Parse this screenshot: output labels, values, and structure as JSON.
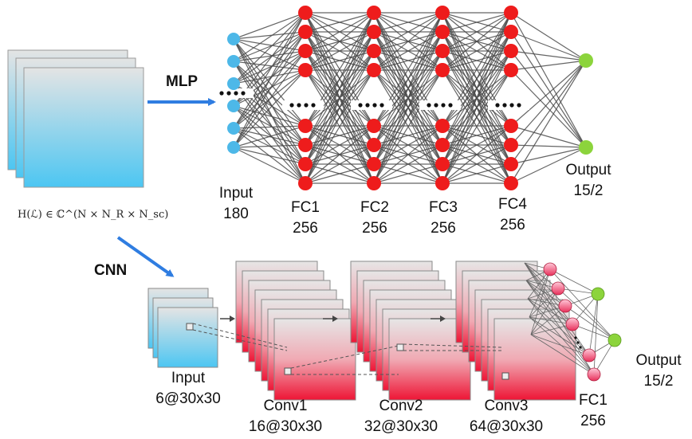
{
  "formula": "H(ℒ) ∈ ℂ^(N × N_R × N_sc)",
  "mlp": {
    "branch_label": "MLP",
    "layers": [
      {
        "name": "Input",
        "size": "180"
      },
      {
        "name": "FC1",
        "size": "256"
      },
      {
        "name": "FC2",
        "size": "256"
      },
      {
        "name": "FC3",
        "size": "256"
      },
      {
        "name": "FC4",
        "size": "256"
      }
    ],
    "output": {
      "name": "Output",
      "size": "15/2"
    }
  },
  "cnn": {
    "branch_label": "CNN",
    "layers": [
      {
        "name": "Input",
        "size": "6@30x30"
      },
      {
        "name": "Conv1",
        "size": "16@30x30"
      },
      {
        "name": "Conv2",
        "size": "32@30x30"
      },
      {
        "name": "Conv3",
        "size": "64@30x30"
      },
      {
        "name": "FC1",
        "size": "256"
      }
    ],
    "output": {
      "name": "Output",
      "size": "15/2"
    }
  },
  "colors": {
    "input_node": "#4db8e8",
    "hidden_node": "#ee1c1c",
    "output_node": "#8cd43c",
    "edge": "#4a4a4a",
    "arrow": "#2f7de1"
  }
}
